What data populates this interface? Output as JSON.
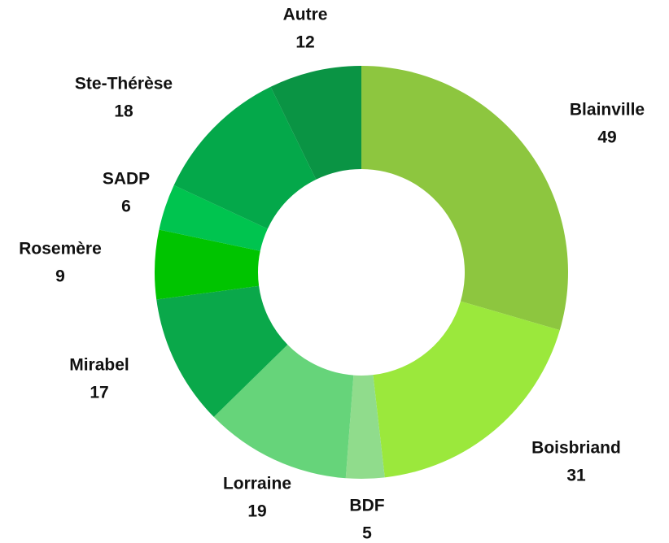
{
  "chart_data": {
    "type": "donut",
    "categories": [
      "Blainville",
      "Boisbriand",
      "BDF",
      "Lorraine",
      "Mirabel",
      "Rosemère",
      "SADP",
      "Ste-Thérèse",
      "Autre"
    ],
    "values": [
      49,
      31,
      5,
      19,
      17,
      9,
      6,
      18,
      12
    ],
    "colors": [
      "#8dc63f",
      "#9be83c",
      "#90dc8c",
      "#66d47a",
      "#0aa84a",
      "#00c400",
      "#00c44f",
      "#04a84a",
      "#0a9444"
    ]
  }
}
